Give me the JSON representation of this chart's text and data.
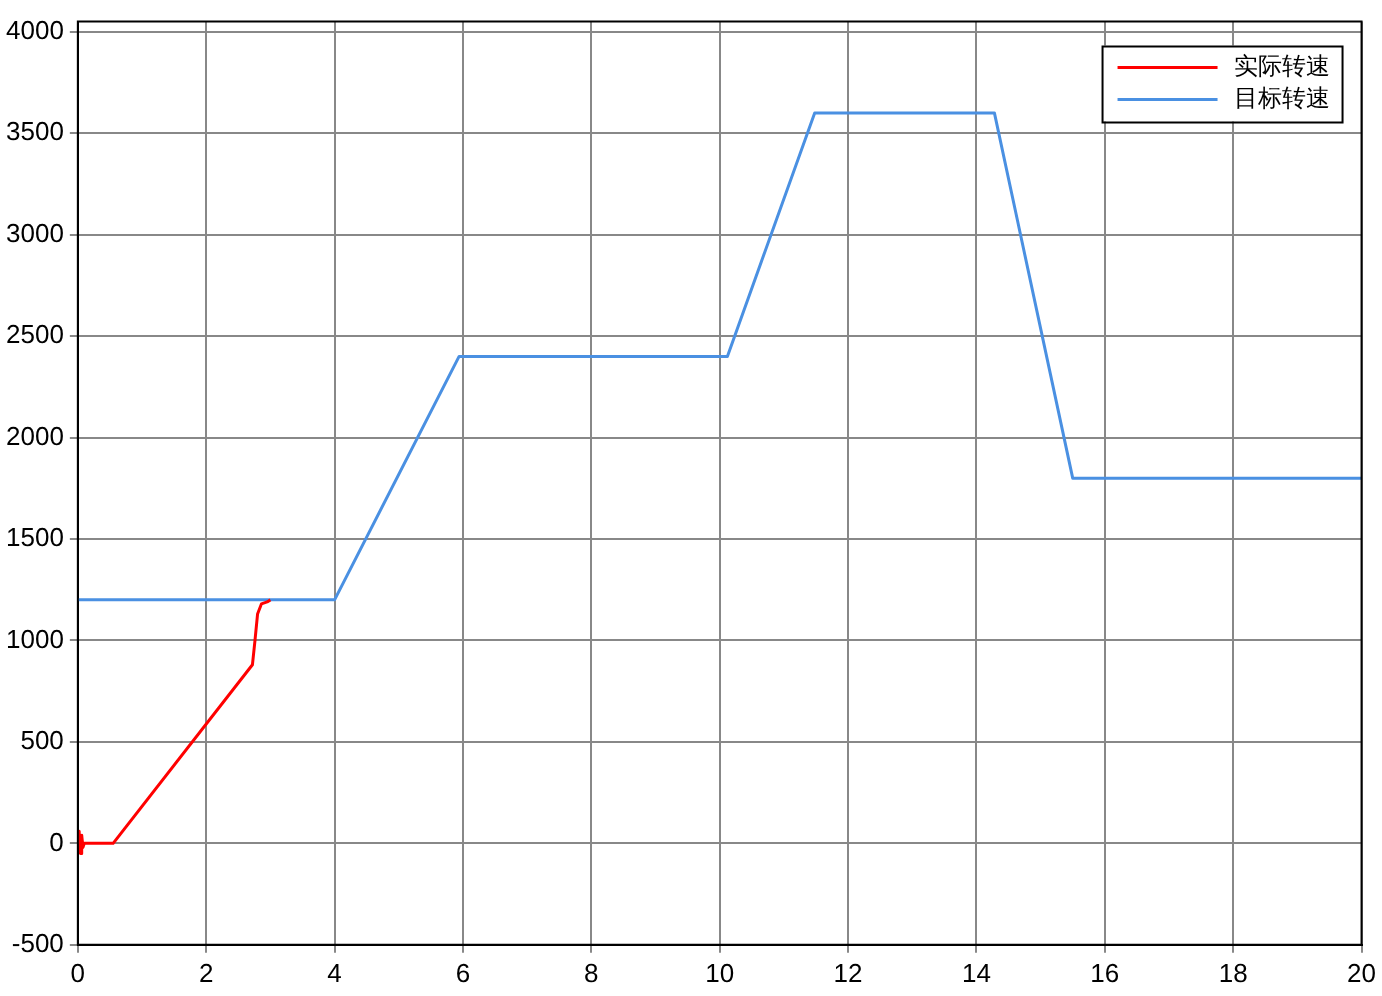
{
  "chart_data": {
    "type": "line",
    "xlim": [
      0,
      20
    ],
    "xticks": [
      0,
      2,
      4,
      6,
      8,
      10,
      12,
      14,
      16,
      18,
      20
    ],
    "ylim": [
      -500,
      4050
    ],
    "yticks": [
      -500,
      0,
      500,
      1000,
      1500,
      2000,
      2500,
      3000,
      3500,
      4000
    ],
    "grid": true,
    "legend": "top right",
    "marker": "none",
    "line_style": "solid",
    "series": [
      {
        "name": "实际转速",
        "color": "#ff0000",
        "x": [
          0,
          0.02,
          0.04,
          0.06,
          0.08,
          0.1,
          0.55,
          2.72,
          2.76,
          2.8,
          2.86,
          2.95,
          3.0
        ],
        "values": [
          0,
          60,
          -50,
          40,
          -20,
          0,
          0,
          880,
          1000,
          1130,
          1180,
          1190,
          1200
        ]
      },
      {
        "name": "目标转速",
        "color": "#4a90e2",
        "x": [
          0,
          4,
          5.94,
          10.12,
          11.48,
          14.28,
          15.5,
          20
        ],
        "values": [
          1200,
          1200,
          2400,
          2400,
          3600,
          3600,
          1800,
          1800
        ]
      }
    ]
  }
}
